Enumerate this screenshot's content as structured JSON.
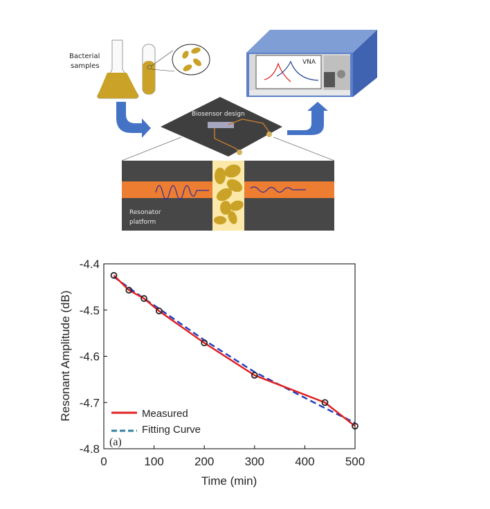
{
  "diagram": {
    "labels": {
      "bacterial_line1": "Bacterial",
      "bacterial_line2": "samples",
      "vna": "VNA",
      "biosensor": "Biosensor design",
      "resonator_line1": "Resonator",
      "resonator_line2": "platform"
    },
    "colors": {
      "arrow": "#4472C4",
      "liquid": "#C9A227",
      "board": "#3F3F3F",
      "strip": "#ED7D31",
      "gap": "#FCE8A8"
    }
  },
  "chart_data": {
    "type": "line",
    "panel_label": "(a)",
    "xlabel": "Time (min)",
    "ylabel": "Resonant Amplitude (dB)",
    "xlim": [
      0,
      500
    ],
    "ylim": [
      -4.8,
      -4.4
    ],
    "xticks": [
      "0",
      "100",
      "200",
      "300",
      "400",
      "500"
    ],
    "yticks": [
      "-4.4",
      "-4.5",
      "-4.6",
      "-4.7",
      "-4.8"
    ],
    "grid": false,
    "legend_placement": "bottom-left",
    "series": [
      {
        "name": "Measured",
        "color": "#E02020",
        "style": "solid",
        "markers": true,
        "x": [
          20,
          50,
          80,
          110,
          200,
          300,
          440,
          500
        ],
        "y": [
          -4.425,
          -4.457,
          -4.475,
          -4.502,
          -4.571,
          -4.641,
          -4.7,
          -4.751
        ]
      },
      {
        "name": "Fitting Curve",
        "color": "#1F3FBF",
        "style": "dashed",
        "markers": false,
        "x": [
          20,
          50,
          80,
          110,
          200,
          300,
          440,
          500
        ],
        "y": [
          -4.428,
          -4.452,
          -4.475,
          -4.497,
          -4.565,
          -4.634,
          -4.712,
          -4.744
        ]
      }
    ]
  }
}
